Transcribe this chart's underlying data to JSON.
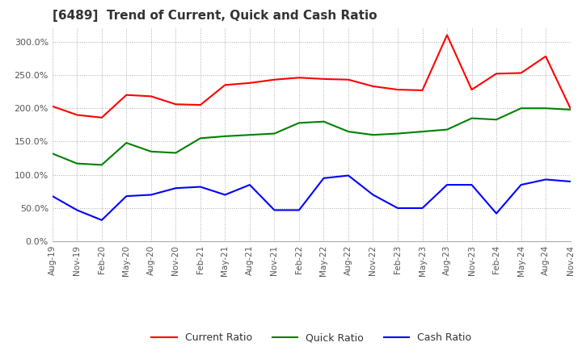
{
  "title": "[6489]  Trend of Current, Quick and Cash Ratio",
  "x_labels": [
    "Aug-19",
    "Nov-19",
    "Feb-20",
    "May-20",
    "Aug-20",
    "Nov-20",
    "Feb-21",
    "May-21",
    "Aug-21",
    "Nov-21",
    "Feb-22",
    "May-22",
    "Aug-22",
    "Nov-22",
    "Feb-23",
    "May-23",
    "Aug-23",
    "Nov-23",
    "Feb-24",
    "May-24",
    "Aug-24",
    "Nov-24"
  ],
  "current_ratio": [
    203,
    190,
    186,
    220,
    218,
    206,
    205,
    235,
    238,
    243,
    246,
    244,
    243,
    233,
    228,
    227,
    310,
    228,
    252,
    253,
    278,
    200
  ],
  "quick_ratio": [
    132,
    117,
    115,
    148,
    135,
    133,
    155,
    158,
    160,
    162,
    178,
    180,
    165,
    160,
    162,
    165,
    168,
    185,
    183,
    200,
    200,
    198
  ],
  "cash_ratio": [
    68,
    47,
    32,
    68,
    70,
    80,
    82,
    70,
    85,
    47,
    47,
    95,
    99,
    70,
    50,
    50,
    85,
    85,
    42,
    85,
    93,
    90
  ],
  "current_color": "#ff0000",
  "quick_color": "#008000",
  "cash_color": "#0000ff",
  "ylim": [
    0,
    320
  ],
  "yticks": [
    0,
    50,
    100,
    150,
    200,
    250,
    300
  ],
  "background_color": "#ffffff",
  "legend_labels": [
    "Current Ratio",
    "Quick Ratio",
    "Cash Ratio"
  ]
}
